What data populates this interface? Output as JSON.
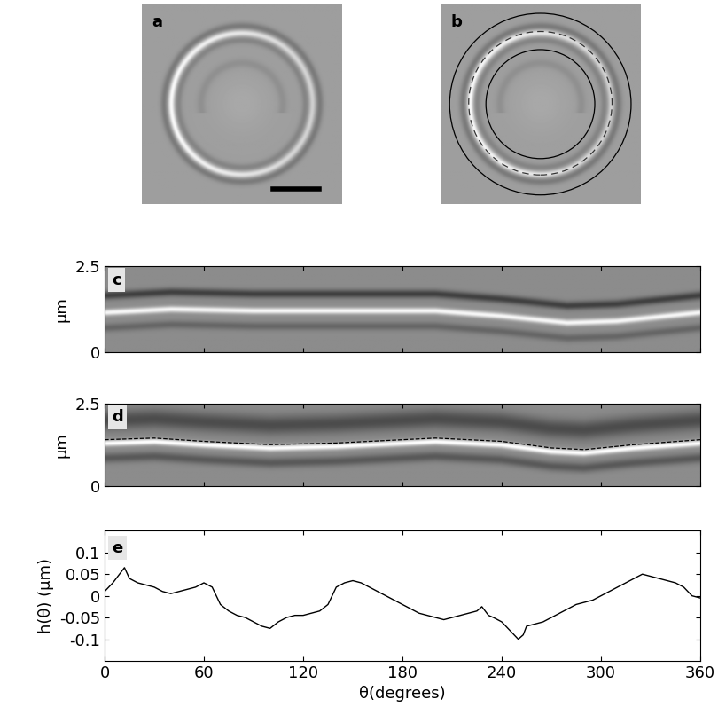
{
  "chart_data": [
    {
      "type": "image",
      "title": "a"
    },
    {
      "type": "overlay",
      "title": "b"
    },
    {
      "type": "kymograph",
      "title": "c",
      "ylabel": "µm",
      "x": [
        0,
        40,
        90,
        150,
        200,
        240,
        280,
        310,
        340,
        360
      ],
      "values": [
        1.15,
        1.25,
        1.2,
        1.2,
        1.2,
        1.05,
        0.85,
        0.9,
        1.05,
        1.15
      ],
      "xlim": [
        0,
        360
      ],
      "xticks": [
        0,
        60,
        120,
        180,
        240,
        300,
        360
      ],
      "ylim": [
        0,
        2.5
      ],
      "yticks": [
        0,
        2.5
      ],
      "tick_labels": "y"
    },
    {
      "type": "kymograph",
      "title": "d",
      "ylabel": "µm",
      "x": [
        0,
        30,
        60,
        100,
        140,
        180,
        200,
        240,
        270,
        290,
        320,
        360
      ],
      "values": [
        1.4,
        1.45,
        1.35,
        1.25,
        1.3,
        1.4,
        1.45,
        1.35,
        1.15,
        1.1,
        1.25,
        1.4
      ],
      "line_style": "dashed",
      "color": "#000000",
      "xlim": [
        0,
        360
      ],
      "xticks": [
        0,
        60,
        120,
        180,
        240,
        300,
        360
      ],
      "ylim": [
        0,
        2.5
      ],
      "yticks": [
        0,
        2.5
      ],
      "tick_labels": "y"
    },
    {
      "type": "line",
      "title": "e",
      "xlabel": "θ(degrees)",
      "ylabel": "h(θ) (µm)",
      "color": "#000000",
      "x": [
        0,
        5,
        10,
        12,
        15,
        20,
        25,
        30,
        35,
        40,
        45,
        50,
        55,
        60,
        65,
        70,
        75,
        80,
        85,
        90,
        95,
        100,
        105,
        110,
        115,
        120,
        125,
        130,
        135,
        140,
        145,
        150,
        155,
        160,
        165,
        170,
        175,
        180,
        185,
        190,
        195,
        200,
        205,
        210,
        215,
        220,
        225,
        228,
        232,
        235,
        240,
        245,
        250,
        253,
        255,
        260,
        265,
        270,
        275,
        280,
        285,
        290,
        295,
        300,
        305,
        310,
        315,
        320,
        325,
        330,
        335,
        340,
        345,
        350,
        355,
        360
      ],
      "values": [
        0.01,
        0.03,
        0.055,
        0.065,
        0.04,
        0.03,
        0.025,
        0.02,
        0.01,
        0.005,
        0.01,
        0.015,
        0.02,
        0.03,
        0.02,
        -0.02,
        -0.035,
        -0.045,
        -0.05,
        -0.06,
        -0.07,
        -0.075,
        -0.06,
        -0.05,
        -0.045,
        -0.045,
        -0.04,
        -0.035,
        -0.02,
        0.02,
        0.03,
        0.035,
        0.03,
        0.02,
        0.01,
        0.0,
        -0.01,
        -0.02,
        -0.03,
        -0.04,
        -0.045,
        -0.05,
        -0.055,
        -0.05,
        -0.045,
        -0.04,
        -0.035,
        -0.025,
        -0.045,
        -0.05,
        -0.06,
        -0.08,
        -0.1,
        -0.09,
        -0.07,
        -0.065,
        -0.06,
        -0.05,
        -0.04,
        -0.03,
        -0.02,
        -0.015,
        -0.01,
        0.0,
        0.01,
        0.02,
        0.03,
        0.04,
        0.05,
        0.045,
        0.04,
        0.035,
        0.03,
        0.02,
        0.0,
        -0.005
      ],
      "xlim": [
        0,
        360
      ],
      "xticks": [
        0,
        60,
        120,
        180,
        240,
        300,
        360
      ],
      "ylim": [
        -0.15,
        0.15
      ],
      "yticks": [
        -0.1,
        -0.05,
        0,
        0.05,
        0.1
      ]
    }
  ]
}
